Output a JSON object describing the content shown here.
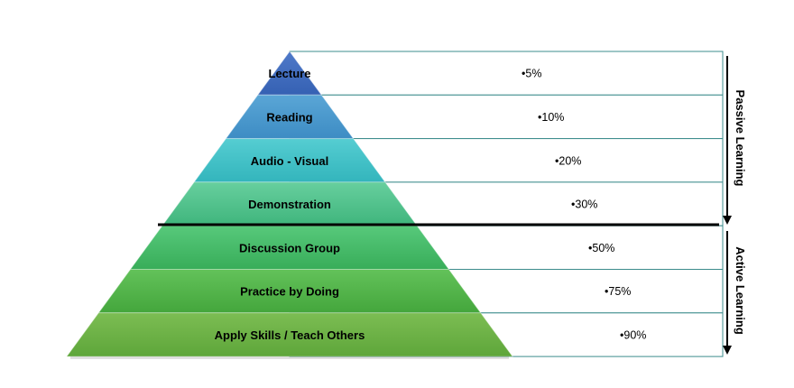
{
  "levels": [
    {
      "label": "Lecture",
      "percent": "•5%",
      "color_top": "#4f79c9",
      "color_bottom": "#3561b3"
    },
    {
      "label": "Reading",
      "percent": "•10%",
      "color_top": "#5aa6d6",
      "color_bottom": "#3d8cc4"
    },
    {
      "label": "Audio - Visual",
      "percent": "•20%",
      "color_top": "#55cdd2",
      "color_bottom": "#33b5bc"
    },
    {
      "label": "Demonstration",
      "percent": "•30%",
      "color_top": "#67cf9e",
      "color_bottom": "#3fb57c"
    },
    {
      "label": "Discussion Group",
      "percent": "•50%",
      "color_top": "#57c97b",
      "color_bottom": "#38ad59"
    },
    {
      "label": "Practice by Doing",
      "percent": "•75%",
      "color_top": "#63c25a",
      "color_bottom": "#44a63c"
    },
    {
      "label": "Apply Skills / Teach Others",
      "percent": "•90%",
      "color_top": "#7cbd53",
      "color_bottom": "#5ea63a"
    }
  ],
  "side_labels": {
    "passive": "Passive Learning",
    "active": "Active Learning"
  },
  "colors": {
    "table_border": "#3c8c8c",
    "divider": "#000000",
    "arrow": "#000000"
  }
}
